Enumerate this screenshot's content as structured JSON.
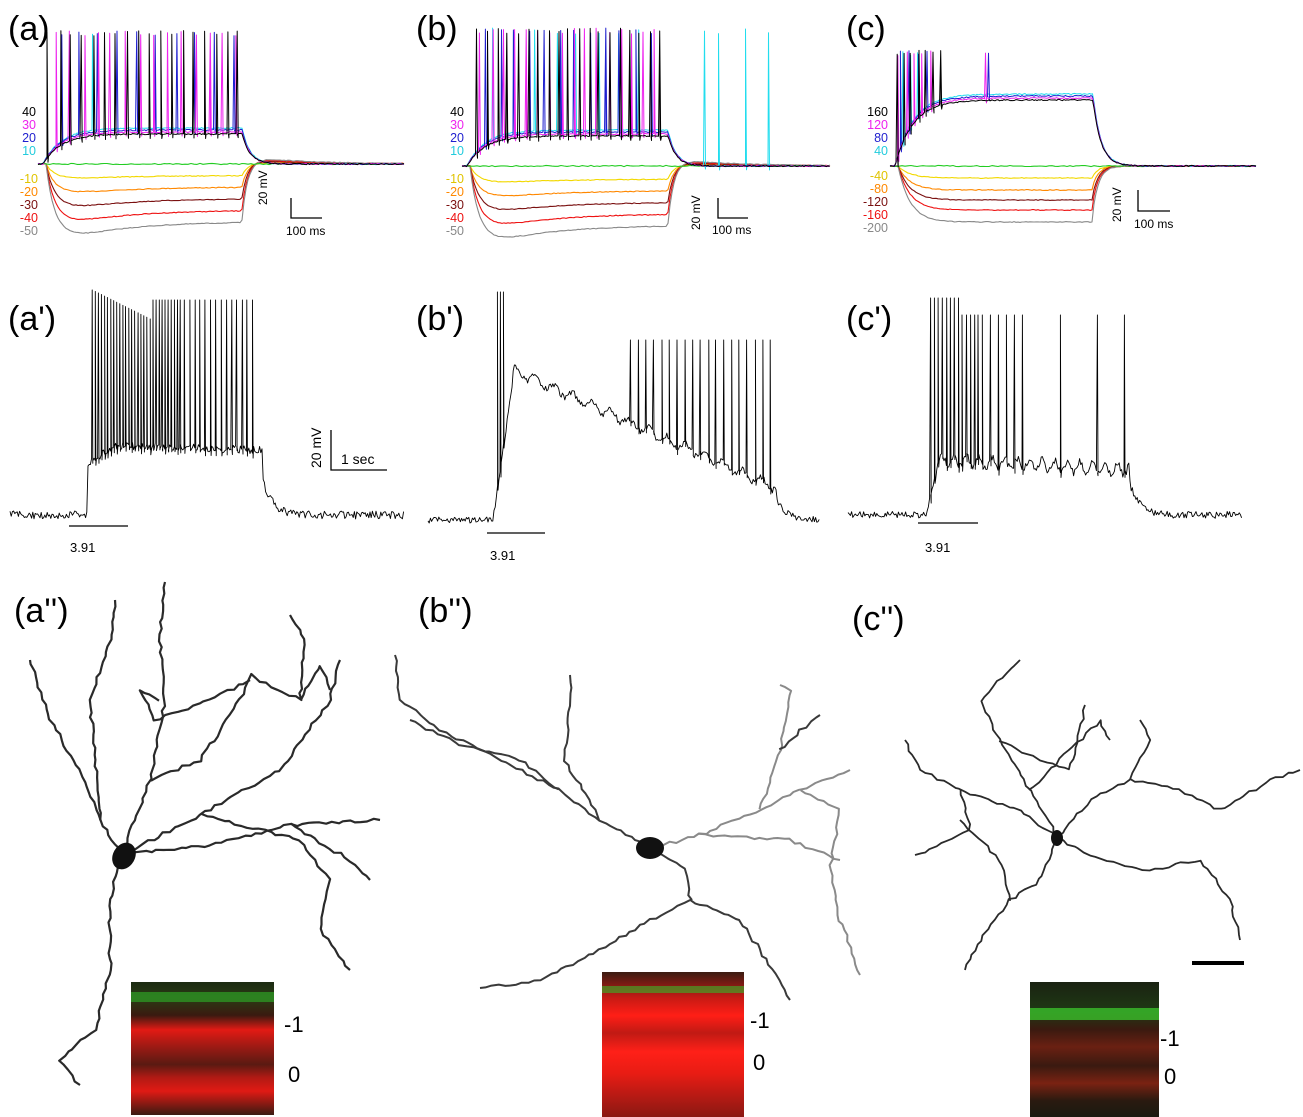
{
  "panels": {
    "a": {
      "label": "(a)",
      "top_labels": [
        "40",
        "30",
        "20",
        "10"
      ],
      "bottom_labels": [
        "-10",
        "-20",
        "-30",
        "-40",
        "-50"
      ],
      "scale_v": "20 mV",
      "scale_h": "100 ms"
    },
    "b": {
      "label": "(b)",
      "top_labels": [
        "40",
        "30",
        "20",
        "10"
      ],
      "bottom_labels": [
        "-10",
        "-20",
        "-30",
        "-40",
        "-50"
      ],
      "scale_v": "20 mV",
      "scale_h": "100 ms"
    },
    "c": {
      "label": "(c)",
      "top_labels": [
        "160",
        "120",
        "80",
        "40"
      ],
      "bottom_labels": [
        "-40",
        "-80",
        "-120",
        "-160",
        "-200"
      ],
      "scale_v": "20 mV",
      "scale_h": "100 ms"
    },
    "a_prime": {
      "label": "(a')",
      "stim": "3.91",
      "scale_v": "20 mV",
      "scale_h": "1 sec"
    },
    "b_prime": {
      "label": "(b')",
      "stim": "3.91"
    },
    "c_prime": {
      "label": "(c')",
      "stim": "3.91"
    },
    "a_dprime": {
      "label": "(a'')",
      "layer_top": "-1",
      "layer_bottom": "0"
    },
    "b_dprime": {
      "label": "(b'')",
      "layer_top": "-1",
      "layer_bottom": "0"
    },
    "c_dprime": {
      "label": "(c'')",
      "layer_top": "-1",
      "layer_bottom": "0"
    }
  },
  "colors": {
    "top": [
      "#000000",
      "#ee22ee",
      "#1f1fcf",
      "#22ddee"
    ],
    "zero": "#22cc22",
    "bottom": [
      "#f2d800",
      "#ff8800",
      "#7a1010",
      "#ee1111",
      "#888888"
    ]
  }
}
